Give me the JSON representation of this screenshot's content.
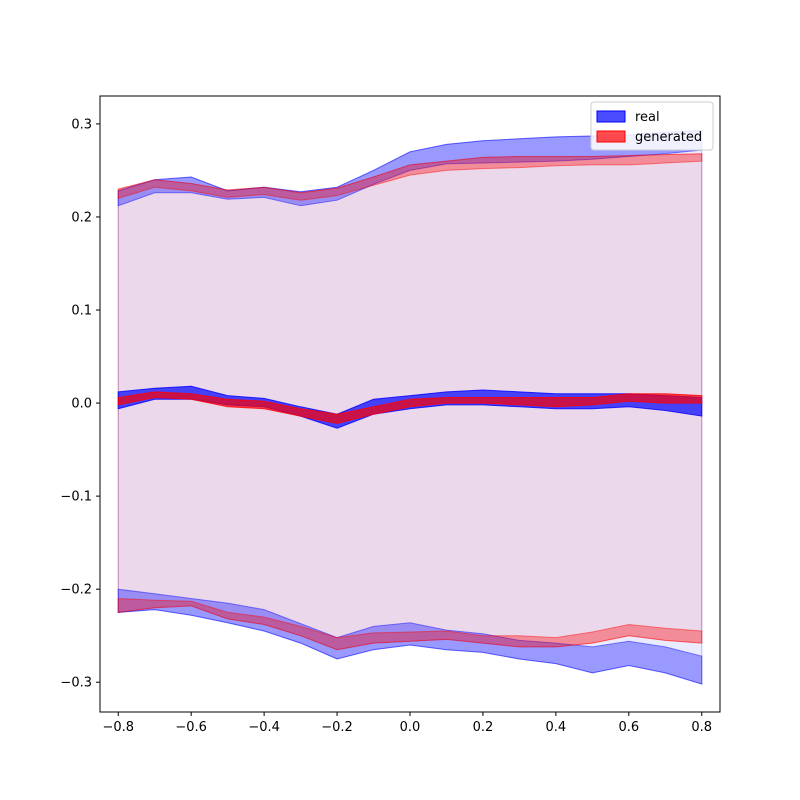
{
  "chart_data": {
    "type": "area",
    "title": "",
    "xlabel": "",
    "ylabel": "",
    "xlim": [
      -0.85,
      0.85
    ],
    "ylim": [
      -0.332,
      0.33
    ],
    "grid": false,
    "legend_placement": "top-right",
    "x_ticks": [
      -0.8,
      -0.6,
      -0.4,
      -0.2,
      0.0,
      0.2,
      0.4,
      0.6,
      0.8
    ],
    "x_tick_labels": [
      "−0.8",
      "−0.6",
      "−0.4",
      "−0.2",
      "0.0",
      "0.2",
      "0.4",
      "0.6",
      "0.8"
    ],
    "y_ticks": [
      -0.3,
      -0.2,
      -0.1,
      0.0,
      0.1,
      0.2,
      0.3
    ],
    "y_tick_labels": [
      "−0.3",
      "−0.2",
      "−0.1",
      "0.0",
      "0.1",
      "0.2",
      "0.3"
    ],
    "x": [
      -0.8,
      -0.7,
      -0.6,
      -0.5,
      -0.4,
      -0.3,
      -0.2,
      -0.1,
      0.0,
      0.1,
      0.2,
      0.3,
      0.4,
      0.5,
      0.6,
      0.7,
      0.8
    ],
    "series": [
      {
        "name": "real",
        "color": "#0000ff",
        "bands": [
          {
            "role": "upper",
            "lower": [
              0.212,
              0.226,
              0.226,
              0.219,
              0.221,
              0.212,
              0.218,
              0.235,
              0.25,
              0.257,
              0.258,
              0.259,
              0.26,
              0.262,
              0.265,
              0.268,
              0.272
            ],
            "upper": [
              0.228,
              0.24,
              0.243,
              0.228,
              0.232,
              0.227,
              0.232,
              0.25,
              0.27,
              0.278,
              0.282,
              0.284,
              0.286,
              0.287,
              0.288,
              0.291,
              0.293
            ]
          },
          {
            "role": "mean",
            "lower": [
              -0.006,
              0.004,
              0.004,
              -0.002,
              -0.004,
              -0.014,
              -0.027,
              -0.012,
              -0.006,
              -0.002,
              -0.002,
              -0.004,
              -0.006,
              -0.006,
              -0.004,
              -0.008,
              -0.014
            ],
            "upper": [
              0.012,
              0.016,
              0.018,
              0.008,
              0.005,
              -0.004,
              -0.012,
              0.004,
              0.008,
              0.012,
              0.014,
              0.012,
              0.01,
              0.01,
              0.01,
              0.008,
              0.006
            ]
          },
          {
            "role": "lower",
            "lower": [
              -0.225,
              -0.222,
              -0.228,
              -0.236,
              -0.245,
              -0.258,
              -0.275,
              -0.265,
              -0.26,
              -0.265,
              -0.268,
              -0.275,
              -0.28,
              -0.29,
              -0.282,
              -0.29,
              -0.302
            ],
            "upper": [
              -0.2,
              -0.205,
              -0.21,
              -0.215,
              -0.222,
              -0.237,
              -0.252,
              -0.24,
              -0.236,
              -0.244,
              -0.248,
              -0.255,
              -0.258,
              -0.262,
              -0.256,
              -0.262,
              -0.272
            ]
          }
        ]
      },
      {
        "name": "generated",
        "color": "#ff0000",
        "bands": [
          {
            "role": "upper",
            "lower": [
              0.22,
              0.232,
              0.228,
              0.221,
              0.224,
              0.218,
              0.223,
              0.234,
              0.245,
              0.25,
              0.252,
              0.253,
              0.255,
              0.256,
              0.256,
              0.258,
              0.26
            ],
            "upper": [
              0.23,
              0.24,
              0.236,
              0.229,
              0.232,
              0.226,
              0.231,
              0.243,
              0.256,
              0.26,
              0.264,
              0.265,
              0.265,
              0.265,
              0.266,
              0.267,
              0.268
            ]
          },
          {
            "role": "mean",
            "lower": [
              -0.002,
              0.006,
              0.004,
              -0.004,
              -0.006,
              -0.014,
              -0.022,
              -0.012,
              -0.004,
              0.0,
              0.0,
              -0.002,
              -0.004,
              -0.002,
              0.002,
              0.0,
              0.0
            ],
            "upper": [
              0.006,
              0.012,
              0.01,
              0.004,
              0.002,
              -0.006,
              -0.012,
              -0.004,
              0.004,
              0.006,
              0.006,
              0.006,
              0.006,
              0.006,
              0.01,
              0.01,
              0.008
            ]
          },
          {
            "role": "lower",
            "lower": [
              -0.225,
              -0.22,
              -0.218,
              -0.232,
              -0.238,
              -0.25,
              -0.265,
              -0.258,
              -0.256,
              -0.254,
              -0.258,
              -0.262,
              -0.262,
              -0.258,
              -0.25,
              -0.255,
              -0.258
            ],
            "upper": [
              -0.21,
              -0.212,
              -0.213,
              -0.225,
              -0.23,
              -0.24,
              -0.252,
              -0.247,
              -0.246,
              -0.245,
              -0.25,
              -0.25,
              -0.252,
              -0.246,
              -0.238,
              -0.242,
              -0.245
            ]
          }
        ]
      }
    ],
    "legend_entries": [
      {
        "label": "real",
        "color": "#0000ff"
      },
      {
        "label": "generated",
        "color": "#ff0000"
      }
    ]
  }
}
